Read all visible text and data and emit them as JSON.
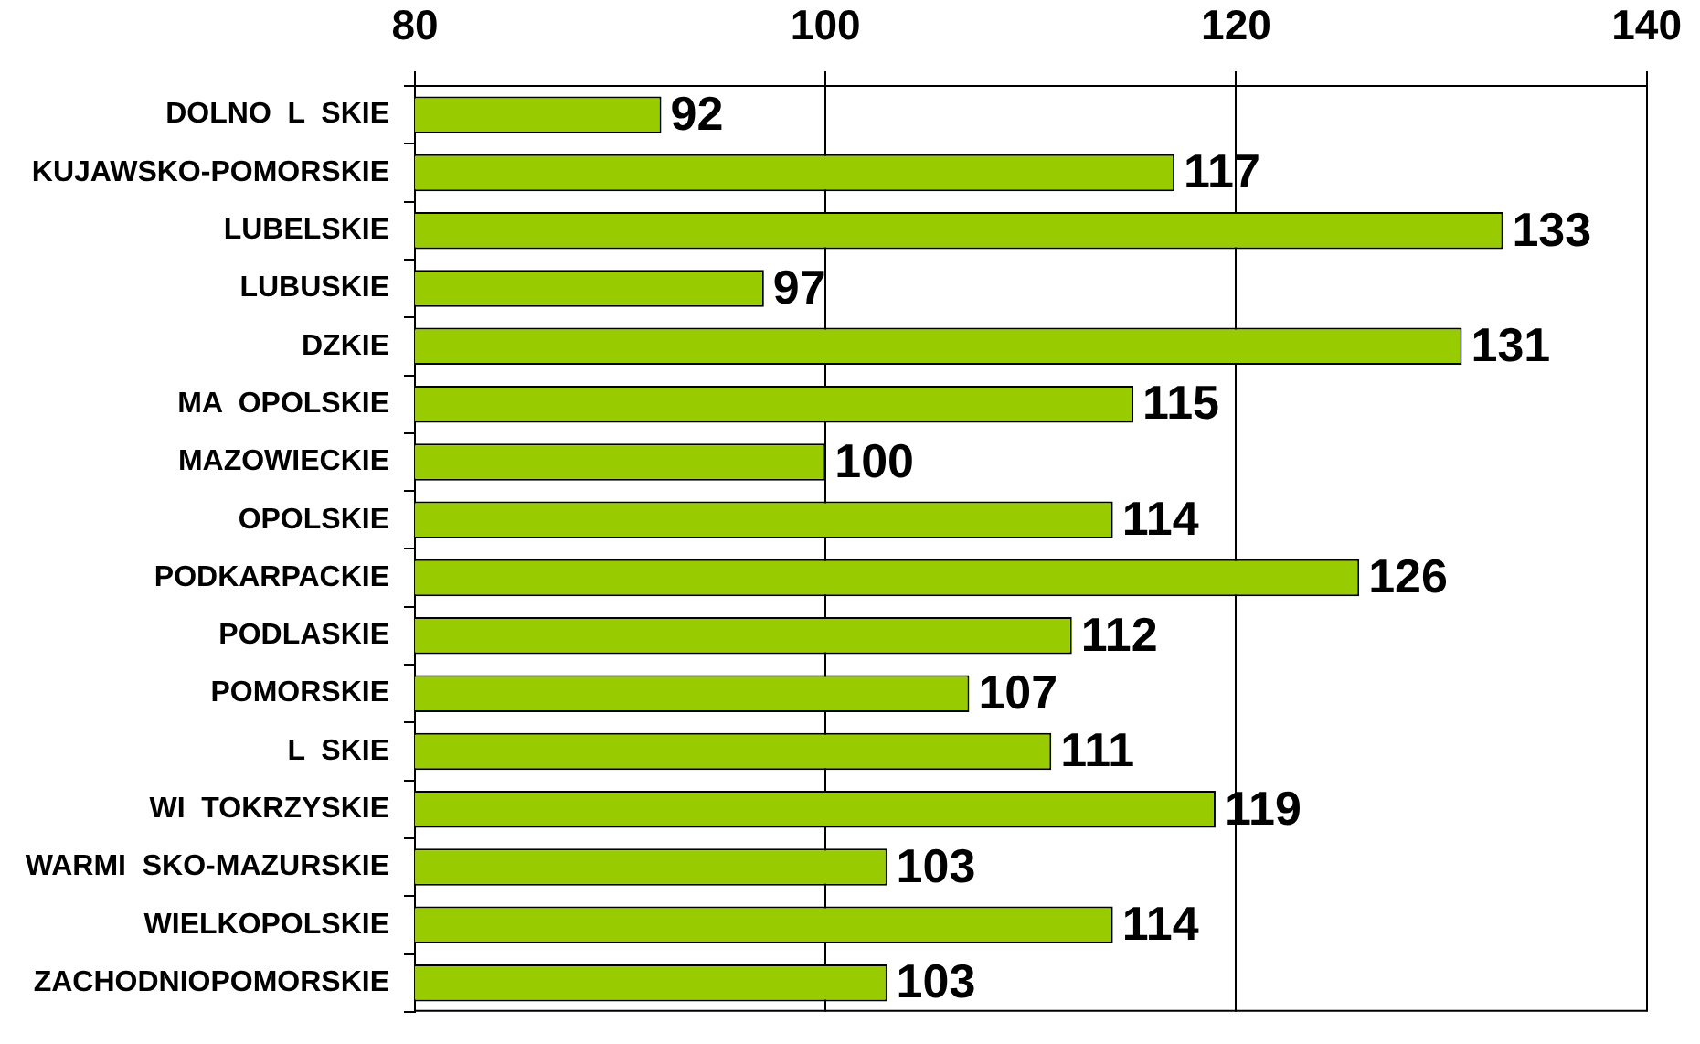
{
  "chart_data": {
    "type": "bar",
    "orientation": "horizontal",
    "categories": [
      "DOLNO  L  SKIE",
      "KUJAWSKO-POMORSKIE",
      "LUBELSKIE",
      "LUBUSKIE",
      "DZKIE",
      "MA  OPOLSKIE",
      "MAZOWIECKIE",
      "OPOLSKIE",
      "PODKARPACKIE",
      "PODLASKIE",
      "POMORSKIE",
      "L  SKIE",
      "WI  TOKRZYSKIE",
      "WARMI  SKO-MAZURSKIE",
      "WIELKOPOLSKIE",
      "ZACHODNIOPOMORSKIE"
    ],
    "values": [
      92,
      117,
      133,
      97,
      131,
      115,
      100,
      114,
      126,
      112,
      107,
      111,
      119,
      103,
      114,
      103
    ],
    "color": "#99cc00",
    "xlim": [
      80,
      140
    ],
    "xticks": [
      80,
      100,
      120,
      140
    ],
    "grid": "x",
    "data_labels": true
  }
}
